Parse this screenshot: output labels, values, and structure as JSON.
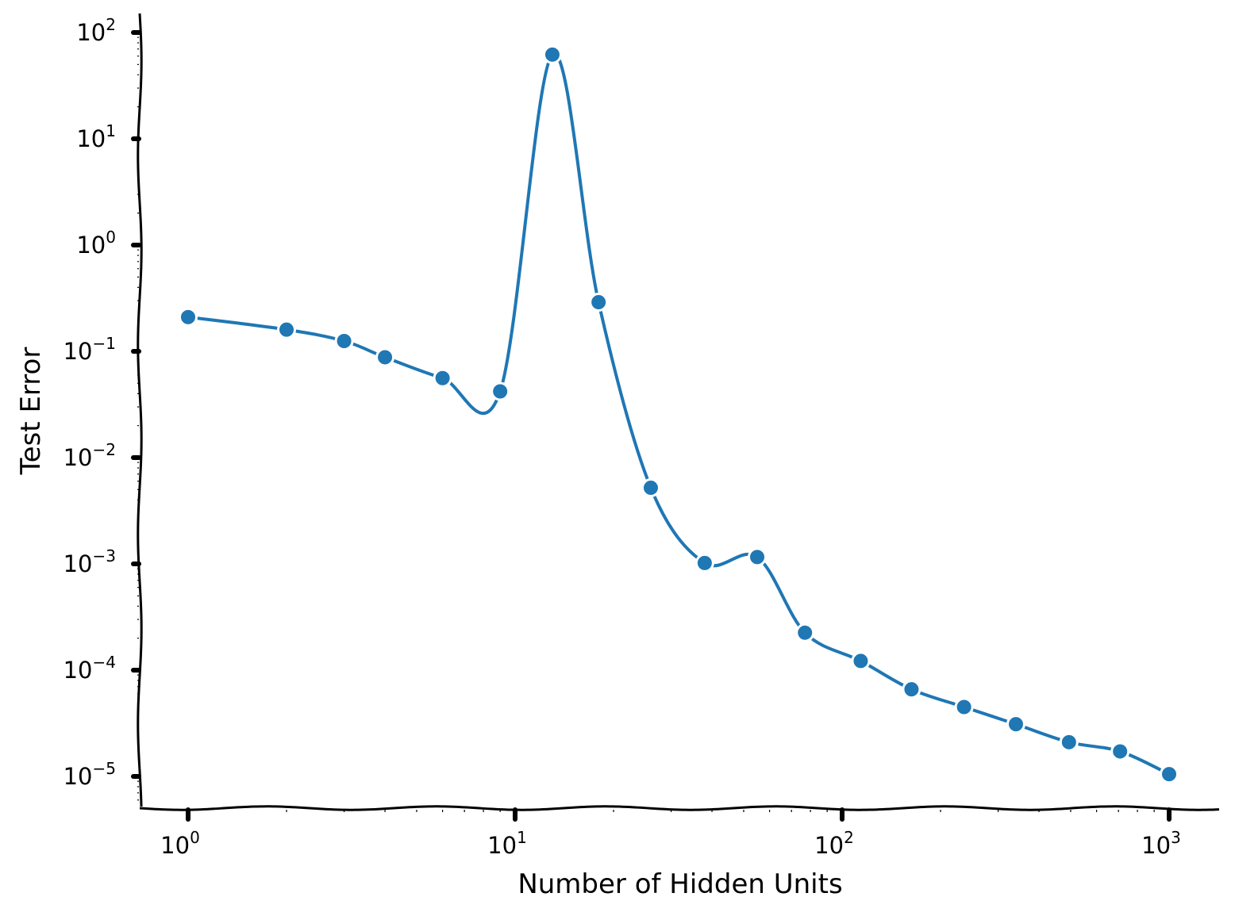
{
  "chart_data": {
    "type": "line",
    "xlabel": "Number of Hidden Units",
    "ylabel": "Test Error",
    "xscale": "log",
    "yscale": "log",
    "xlim": [
      0.72,
      1400
    ],
    "ylim": [
      5e-06,
      150
    ],
    "grid": false,
    "x_ticks": [
      {
        "base": "10",
        "exp": "0",
        "value": 1
      },
      {
        "base": "10",
        "exp": "1",
        "value": 10
      },
      {
        "base": "10",
        "exp": "2",
        "value": 100
      },
      {
        "base": "10",
        "exp": "3",
        "value": 1000
      }
    ],
    "y_ticks": [
      {
        "base": "10",
        "exp": "2",
        "value": 100
      },
      {
        "base": "10",
        "exp": "1",
        "value": 10
      },
      {
        "base": "10",
        "exp": "0",
        "value": 1
      },
      {
        "base": "10",
        "exp": "−1",
        "value": 0.1
      },
      {
        "base": "10",
        "exp": "−2",
        "value": 0.01
      },
      {
        "base": "10",
        "exp": "−3",
        "value": 0.001
      },
      {
        "base": "10",
        "exp": "−4",
        "value": 0.0001
      },
      {
        "base": "10",
        "exp": "−5",
        "value": 1e-05
      }
    ],
    "series": [
      {
        "color": "#1f77b4",
        "x": [
          1,
          2,
          3,
          4,
          6,
          9,
          13,
          18,
          26,
          38,
          55,
          77,
          114,
          163,
          236,
          340,
          494,
          708,
          1000
        ],
        "y": [
          0.21,
          0.16,
          0.125,
          0.088,
          0.056,
          0.042,
          62,
          0.29,
          0.0052,
          0.00102,
          0.00116,
          0.000225,
          0.000122,
          6.6e-05,
          4.5e-05,
          3.1e-05,
          2.1e-05,
          1.72e-05,
          1.05e-05
        ]
      }
    ]
  }
}
